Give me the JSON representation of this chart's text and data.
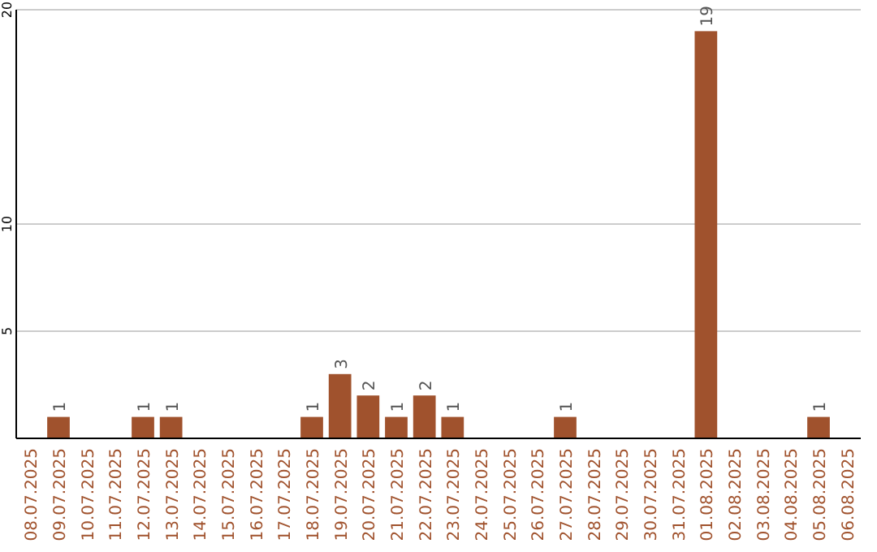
{
  "chart_data": {
    "type": "bar",
    "categories": [
      "08.07.2025",
      "09.07.2025",
      "10.07.2025",
      "11.07.2025",
      "12.07.2025",
      "13.07.2025",
      "14.07.2025",
      "15.07.2025",
      "16.07.2025",
      "17.07.2025",
      "18.07.2025",
      "19.07.2025",
      "20.07.2025",
      "21.07.2025",
      "22.07.2025",
      "23.07.2025",
      "24.07.2025",
      "25.07.2025",
      "26.07.2025",
      "27.07.2025",
      "28.07.2025",
      "29.07.2025",
      "30.07.2025",
      "31.07.2025",
      "01.08.2025",
      "02.08.2025",
      "03.08.2025",
      "04.08.2025",
      "05.08.2025",
      "06.08.2025"
    ],
    "values": [
      0,
      1,
      0,
      0,
      1,
      1,
      0,
      0,
      0,
      0,
      1,
      3,
      2,
      1,
      2,
      1,
      0,
      0,
      0,
      1,
      0,
      0,
      0,
      0,
      19,
      0,
      0,
      0,
      1,
      0
    ],
    "value_labels": [
      null,
      "1",
      null,
      null,
      "1",
      "1",
      null,
      null,
      null,
      null,
      "1",
      "3",
      "2",
      "1",
      "2",
      "1",
      null,
      null,
      null,
      "1",
      null,
      null,
      null,
      null,
      "19",
      null,
      null,
      null,
      "1",
      null
    ],
    "color": "#a0522d",
    "ylim": [
      0,
      20
    ],
    "yticks": [
      5,
      10,
      20
    ],
    "grid": "y"
  }
}
